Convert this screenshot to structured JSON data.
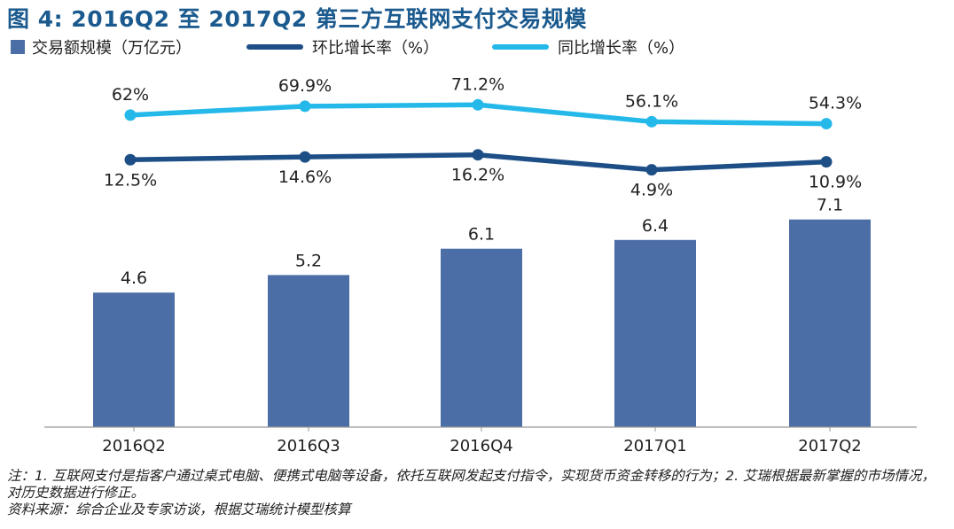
{
  "title": "图 4: 2016Q2 至 2017Q2 第三方互联网支付交易规模",
  "chart_data": {
    "type": "bar",
    "categories": [
      "2016Q2",
      "2016Q3",
      "2016Q4",
      "2017Q1",
      "2017Q2"
    ],
    "series": [
      {
        "name": "交易额规模（万亿元）",
        "type": "bar",
        "values": [
          4.6,
          5.2,
          6.1,
          6.4,
          7.1
        ],
        "labels": [
          "4.6",
          "5.2",
          "6.1",
          "6.4",
          "7.1"
        ],
        "color": "#4a6ea5"
      },
      {
        "name": "环比增长率（%）",
        "type": "line",
        "values": [
          12.5,
          14.6,
          16.2,
          4.9,
          10.9
        ],
        "labels": [
          "12.5%",
          "14.6%",
          "16.2%",
          "4.9%",
          "10.9%"
        ],
        "color": "#1d4f86"
      },
      {
        "name": "同比增长率（%）",
        "type": "line",
        "values": [
          62,
          69.9,
          71.2,
          56.1,
          54.3
        ],
        "labels": [
          "62%",
          "69.9%",
          "71.2%",
          "56.1%",
          "54.3%"
        ],
        "color": "#25b9ea"
      }
    ],
    "legend": "top-left",
    "grid": false
  },
  "notes": {
    "line1": "注：1. 互联网支付是指客户通过桌式电脑、便携式电脑等设备，依托互联网发起支付指令，实现货币资金转移的行为；2. 艾瑞根据最新掌握的市场情况，对历史数据进行修正。",
    "line2": "资料来源：综合企业及专家访谈，根据艾瑞统计模型核算"
  }
}
